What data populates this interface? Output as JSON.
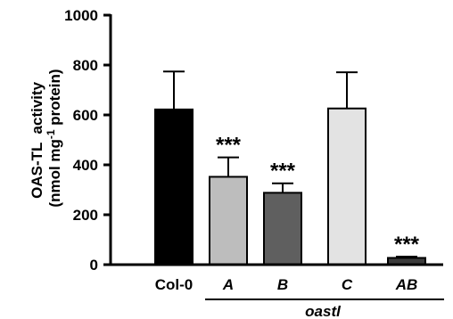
{
  "chart_data": {
    "type": "bar",
    "categories": [
      "Col-0",
      "A",
      "B",
      "C",
      "AB"
    ],
    "category_italic": [
      false,
      true,
      true,
      true,
      true
    ],
    "values": [
      622,
      352,
      288,
      626,
      27
    ],
    "errors": [
      152,
      78,
      38,
      145,
      5
    ],
    "bar_colors": [
      "#000000",
      "#bdbdbd",
      "#5f5f5f",
      "#e3e3e3",
      "#3c3c3c"
    ],
    "significance": [
      "",
      "***",
      "***",
      "",
      "***"
    ],
    "ylabel_line1": "OAS-TL  activity",
    "ylabel_line2_pre": "(nmol mg",
    "ylabel_line2_sup": "-1",
    "ylabel_line2_post": " protein)",
    "group_label": "oastl",
    "group_members": [
      "A",
      "B",
      "C",
      "AB"
    ],
    "ylim": [
      0,
      1000
    ],
    "yticks": [
      0,
      200,
      400,
      600,
      800,
      1000
    ],
    "ytick_labels": [
      "0",
      "200",
      "400",
      "600",
      "800",
      "1000"
    ],
    "grid": false,
    "title": "",
    "xlabel": ""
  }
}
